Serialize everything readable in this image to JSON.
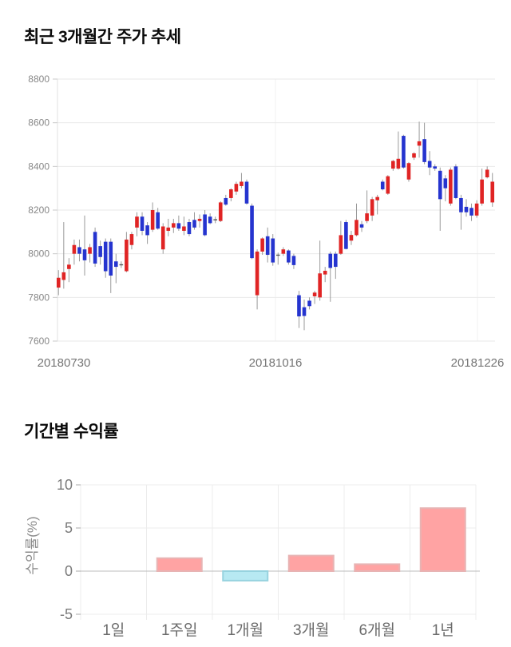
{
  "page": {
    "price_section_title": "최근 3개월간 주가 추세",
    "returns_section_title": "기간별 수익률"
  },
  "chart_data": [
    {
      "type": "candlestick",
      "title": "최근 3개월간 주가 추세",
      "xlabel": "",
      "ylabel": "",
      "ylim": [
        7600,
        8800
      ],
      "y_ticks": [
        8800,
        8600,
        8400,
        8200,
        8000,
        7800,
        7600
      ],
      "x_tick_labels": [
        "20180730",
        "20181016",
        "20181226"
      ],
      "grid": true,
      "up_color": "#e02424",
      "down_color": "#2534cf",
      "doji_color": "#555555",
      "wick_color": "#9a9a9a",
      "ohlc": [
        [
          7845,
          7925,
          7810,
          7890
        ],
        [
          7880,
          8145,
          7840,
          7915
        ],
        [
          7930,
          7980,
          7870,
          7950
        ],
        [
          8000,
          8065,
          7950,
          8040
        ],
        [
          8030,
          8065,
          7965,
          8000
        ],
        [
          8020,
          8175,
          7900,
          7970
        ],
        [
          8000,
          8045,
          7960,
          8030
        ],
        [
          8100,
          8120,
          7940,
          7955
        ],
        [
          8035,
          8060,
          7950,
          7985
        ],
        [
          8055,
          8070,
          7890,
          7920
        ],
        [
          8055,
          8070,
          7820,
          7900
        ],
        [
          7965,
          8000,
          7865,
          7940
        ],
        [
          7950,
          7965,
          7935,
          7952
        ],
        [
          7920,
          8100,
          7915,
          8065
        ],
        [
          8040,
          8100,
          8020,
          8090
        ],
        [
          8120,
          8190,
          8080,
          8170
        ],
        [
          8170,
          8190,
          8085,
          8105
        ],
        [
          8130,
          8145,
          8045,
          8085
        ],
        [
          8110,
          8235,
          8100,
          8200
        ],
        [
          8190,
          8210,
          8110,
          8115
        ],
        [
          8020,
          8140,
          8000,
          8125
        ],
        [
          8105,
          8160,
          8080,
          8120
        ],
        [
          8120,
          8160,
          8095,
          8140
        ],
        [
          8140,
          8175,
          8105,
          8115
        ],
        [
          8105,
          8170,
          8085,
          8125
        ],
        [
          8145,
          8160,
          8080,
          8090
        ],
        [
          8155,
          8190,
          8110,
          8120
        ],
        [
          8150,
          8180,
          8120,
          8160
        ],
        [
          8180,
          8200,
          8080,
          8085
        ],
        [
          8170,
          8185,
          8135,
          8140
        ],
        [
          8157,
          8170,
          8140,
          8158
        ],
        [
          8150,
          8240,
          8145,
          8235
        ],
        [
          8255,
          8270,
          8220,
          8225
        ],
        [
          8255,
          8300,
          8240,
          8295
        ],
        [
          8285,
          8330,
          8270,
          8320
        ],
        [
          8310,
          8370,
          8300,
          8330
        ],
        [
          8330,
          8340,
          8225,
          8230
        ],
        [
          8220,
          8230,
          7975,
          7980
        ],
        [
          7810,
          8020,
          7745,
          8010
        ],
        [
          8010,
          8075,
          7995,
          8070
        ],
        [
          8080,
          8120,
          7960,
          7995
        ],
        [
          8070,
          8090,
          7945,
          7960
        ],
        [
          7995,
          8005,
          7950,
          7996
        ],
        [
          8000,
          8030,
          7990,
          8020
        ],
        [
          8015,
          8020,
          7950,
          7960
        ],
        [
          7990,
          8000,
          7930,
          7948
        ],
        [
          7810,
          7830,
          7660,
          7713
        ],
        [
          7755,
          7790,
          7650,
          7715
        ],
        [
          7785,
          7800,
          7745,
          7760
        ],
        [
          7805,
          7830,
          7770,
          7822
        ],
        [
          7800,
          8060,
          7785,
          7910
        ],
        [
          7905,
          7940,
          7870,
          7922
        ],
        [
          8000,
          8010,
          7780,
          7935
        ],
        [
          8000,
          8010,
          7885,
          7940
        ],
        [
          8000,
          8150,
          7995,
          8085
        ],
        [
          8145,
          8155,
          8020,
          8022
        ],
        [
          8060,
          8105,
          8040,
          8086
        ],
        [
          8085,
          8230,
          8080,
          8155
        ],
        [
          8135,
          8150,
          8100,
          8120
        ],
        [
          8150,
          8290,
          8140,
          8185
        ],
        [
          8175,
          8260,
          8150,
          8250
        ],
        [
          8245,
          8270,
          8180,
          8260
        ],
        [
          8330,
          8340,
          8290,
          8295
        ],
        [
          8275,
          8360,
          8270,
          8355
        ],
        [
          8390,
          8430,
          8380,
          8425
        ],
        [
          8390,
          8560,
          8385,
          8435
        ],
        [
          8540,
          8545,
          8390,
          8395
        ],
        [
          8340,
          8420,
          8330,
          8415
        ],
        [
          8440,
          8465,
          8430,
          8460
        ],
        [
          8495,
          8605,
          8440,
          8515
        ],
        [
          8525,
          8600,
          8410,
          8420
        ],
        [
          8425,
          8470,
          8360,
          8395
        ],
        [
          8400,
          8410,
          8380,
          8390
        ],
        [
          8380,
          8395,
          8105,
          8250
        ],
        [
          8345,
          8360,
          8240,
          8300
        ],
        [
          8230,
          8395,
          8220,
          8385
        ],
        [
          8400,
          8410,
          8250,
          8255
        ],
        [
          8255,
          8270,
          8110,
          8190
        ],
        [
          8215,
          8250,
          8170,
          8190
        ],
        [
          8210,
          8230,
          8150,
          8175
        ],
        [
          8175,
          8245,
          8165,
          8230
        ],
        [
          8230,
          8390,
          8220,
          8340
        ],
        [
          8350,
          8400,
          8345,
          8385
        ],
        [
          8235,
          8370,
          8215,
          8330
        ]
      ]
    },
    {
      "type": "bar",
      "title": "기간별 수익률",
      "xlabel": "",
      "ylabel": "수익률(%)",
      "ylim": [
        -5,
        10
      ],
      "y_ticks": [
        10,
        5,
        0,
        -5
      ],
      "grid": true,
      "categories": [
        "1일",
        "1주일",
        "1개월",
        "3개월",
        "6개월",
        "1년"
      ],
      "values": [
        0,
        1.5,
        -1.1,
        1.8,
        0.8,
        7.3
      ],
      "pos_color": "#ffa3a3",
      "pos_border": "#e7b4b4",
      "neg_color": "#b7e9f2",
      "neg_border": "#97d3df"
    }
  ]
}
